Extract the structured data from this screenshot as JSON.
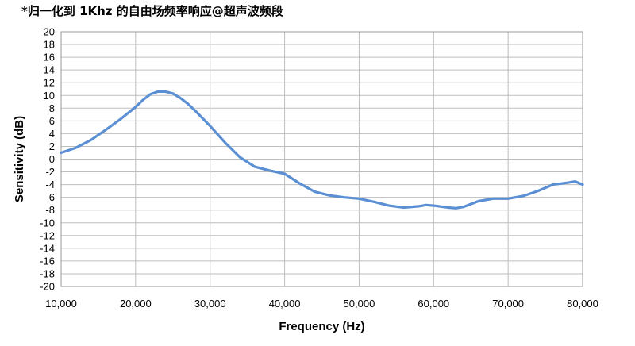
{
  "chart_data": {
    "type": "line",
    "title": "*归一化到 1Khz 的自由场频率响应@超声波频段",
    "xlabel": "Frequency (Hz)",
    "ylabel": "Sensitivity (dB)",
    "xlim": [
      10000,
      80000
    ],
    "ylim": [
      -20,
      20
    ],
    "x_ticks": [
      10000,
      20000,
      30000,
      40000,
      50000,
      60000,
      70000,
      80000
    ],
    "x_tick_labels": [
      "10,000",
      "20,000",
      "30,000",
      "40,000",
      "50,000",
      "60,000",
      "70,000",
      "80,000"
    ],
    "y_ticks": [
      20,
      18,
      16,
      14,
      12,
      10,
      8,
      6,
      4,
      2,
      0,
      -2,
      -4,
      -6,
      -8,
      -10,
      -12,
      -14,
      -16,
      -18,
      -20
    ],
    "y_tick_labels": [
      "20",
      "18",
      "16",
      "14",
      "12",
      "10",
      "8",
      "6",
      "4",
      "2",
      "0",
      "-2",
      "-4",
      "-6",
      "-8",
      "-10",
      "-12",
      "-14",
      "-16",
      "-18",
      "-20"
    ],
    "grid": true,
    "line_color": "#5b8fd4",
    "series": [
      {
        "name": "",
        "x": [
          10000,
          12000,
          14000,
          16000,
          18000,
          20000,
          21000,
          22000,
          23000,
          24000,
          25000,
          26000,
          27000,
          28000,
          29000,
          30000,
          32000,
          34000,
          36000,
          38000,
          40000,
          42000,
          44000,
          46000,
          48000,
          50000,
          52000,
          54000,
          56000,
          58000,
          59000,
          60000,
          62000,
          63000,
          64000,
          66000,
          68000,
          70000,
          72000,
          74000,
          76000,
          78000,
          79000,
          80000
        ],
        "y": [
          1,
          1.8,
          3,
          4.6,
          6.3,
          8.2,
          9.3,
          10.2,
          10.6,
          10.6,
          10.3,
          9.6,
          8.7,
          7.6,
          6.4,
          5.2,
          2.6,
          0.3,
          -1.2,
          -1.8,
          -2.3,
          -3.8,
          -5.1,
          -5.7,
          -6,
          -6.2,
          -6.7,
          -7.3,
          -7.6,
          -7.4,
          -7.2,
          -7.3,
          -7.6,
          -7.7,
          -7.5,
          -6.6,
          -6.2,
          -6.2,
          -5.8,
          -5,
          -4,
          -3.7,
          -3.5,
          -4
        ]
      }
    ]
  }
}
